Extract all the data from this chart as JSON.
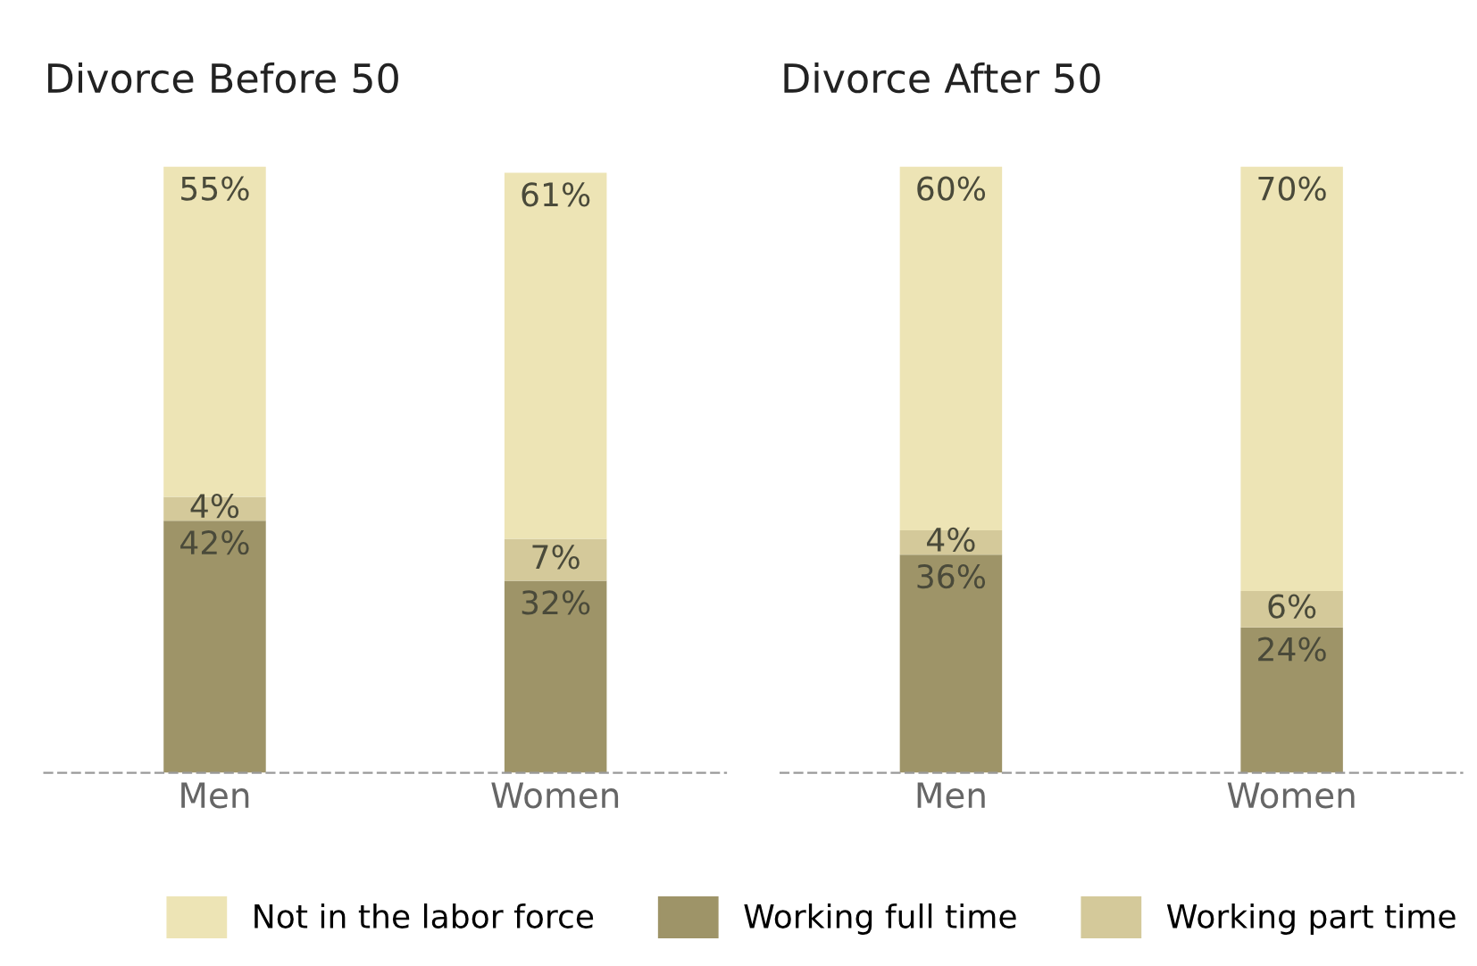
{
  "chart_data": [
    {
      "type": "bar",
      "title": "Divorce Before 50",
      "stacked": true,
      "legend": "bottom",
      "categories": [
        "Men",
        "Women"
      ],
      "series": [
        {
          "name": "Working full time",
          "color": "#9e9468",
          "values": [
            42,
            32
          ],
          "value_labels": [
            "42%",
            "32%"
          ]
        },
        {
          "name": "Working part time",
          "color": "#d4c99a",
          "values": [
            4,
            7
          ],
          "value_labels": [
            "4%",
            "7%"
          ]
        },
        {
          "name": "Not in the labor force",
          "color": "#ede4b5",
          "values": [
            55,
            61
          ],
          "value_labels": [
            "55%",
            "61%"
          ]
        }
      ]
    },
    {
      "type": "bar",
      "title": "Divorce After 50",
      "stacked": true,
      "legend": "bottom",
      "categories": [
        "Men",
        "Women"
      ],
      "series": [
        {
          "name": "Working full time",
          "color": "#9e9468",
          "values": [
            36,
            24
          ],
          "value_labels": [
            "36%",
            "24%"
          ]
        },
        {
          "name": "Working part time",
          "color": "#d4c99a",
          "values": [
            4,
            6
          ],
          "value_labels": [
            "4%",
            "6%"
          ]
        },
        {
          "name": "Not in the labor force",
          "color": "#ede4b5",
          "values": [
            60,
            70
          ],
          "value_labels": [
            "60%",
            "70%"
          ]
        }
      ]
    }
  ]
}
